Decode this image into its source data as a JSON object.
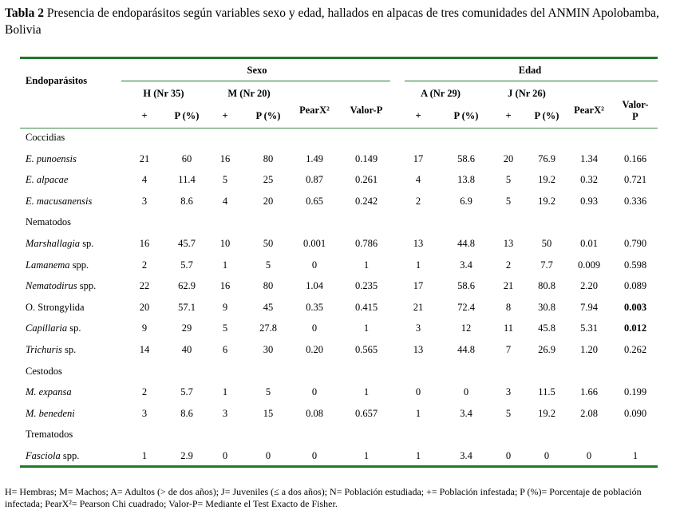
{
  "caption": {
    "label": "Tabla 2",
    "text": " Presencia de endoparásitos según variables sexo y edad, hallados en alpacas de tres comunidades del ANMIN Apolobamba, Bolivia"
  },
  "headers": {
    "endoparasitos": "Endoparásitos",
    "sexo": "Sexo",
    "edad": "Edad",
    "h": "H (Nr 35)",
    "m": "M (Nr 20)",
    "a": "A (Nr 29)",
    "j": "J (Nr 26)",
    "pearx": "PearX²",
    "valor_p": "Valor-P",
    "valor_p_split_1": "Valor-",
    "valor_p_split_2": "P",
    "plus": "+",
    "p_pct": "P (%)"
  },
  "rows": [
    {
      "kind": "group",
      "name": "Coccidias"
    },
    {
      "kind": "data",
      "genus": "E. punoensis",
      "suffix": "",
      "h_plus": "21",
      "h_p": "60",
      "m_plus": "16",
      "m_p": "80",
      "sx_pearx": "1.49",
      "sx_valor": "0.149",
      "a_plus": "17",
      "a_p": "58.6",
      "j_plus": "20",
      "j_p": "76.9",
      "ed_pearx": "1.34",
      "ed_valor": "0.166",
      "bold_valor": false
    },
    {
      "kind": "data",
      "genus": "E. alpacae",
      "suffix": "",
      "h_plus": "4",
      "h_p": "11.4",
      "m_plus": "5",
      "m_p": "25",
      "sx_pearx": "0.87",
      "sx_valor": "0.261",
      "a_plus": "4",
      "a_p": "13.8",
      "j_plus": "5",
      "j_p": "19.2",
      "ed_pearx": "0.32",
      "ed_valor": "0.721",
      "bold_valor": false
    },
    {
      "kind": "data",
      "genus": "E. macusanensis",
      "suffix": "",
      "h_plus": "3",
      "h_p": "8.6",
      "m_plus": "4",
      "m_p": "20",
      "sx_pearx": "0.65",
      "sx_valor": "0.242",
      "a_plus": "2",
      "a_p": "6.9",
      "j_plus": "5",
      "j_p": "19.2",
      "ed_pearx": "0.93",
      "ed_valor": "0.336",
      "bold_valor": false
    },
    {
      "kind": "group",
      "name": "Nematodos"
    },
    {
      "kind": "data",
      "genus": "Marshallagia",
      "suffix": " sp.",
      "h_plus": "16",
      "h_p": "45.7",
      "m_plus": "10",
      "m_p": "50",
      "sx_pearx": "0.001",
      "sx_valor": "0.786",
      "a_plus": "13",
      "a_p": "44.8",
      "j_plus": "13",
      "j_p": "50",
      "ed_pearx": "0.01",
      "ed_valor": "0.790",
      "bold_valor": false
    },
    {
      "kind": "data",
      "genus": "Lamanema",
      "suffix": " spp.",
      "h_plus": "2",
      "h_p": "5.7",
      "m_plus": "1",
      "m_p": "5",
      "sx_pearx": "0",
      "sx_valor": "1",
      "a_plus": "1",
      "a_p": "3.4",
      "j_plus": "2",
      "j_p": "7.7",
      "ed_pearx": "0.009",
      "ed_valor": "0.598",
      "bold_valor": false
    },
    {
      "kind": "data",
      "genus": "Nematodirus",
      "suffix": " spp.",
      "h_plus": "22",
      "h_p": "62.9",
      "m_plus": "16",
      "m_p": "80",
      "sx_pearx": "1.04",
      "sx_valor": "0.235",
      "a_plus": "17",
      "a_p": "58.6",
      "j_plus": "21",
      "j_p": "80.8",
      "ed_pearx": "2.20",
      "ed_valor": "0.089",
      "bold_valor": false
    },
    {
      "kind": "data",
      "genus": "",
      "suffix": "O. Strongylida",
      "h_plus": "20",
      "h_p": "57.1",
      "m_plus": "9",
      "m_p": "45",
      "sx_pearx": "0.35",
      "sx_valor": "0.415",
      "a_plus": "21",
      "a_p": "72.4",
      "j_plus": "8",
      "j_p": "30.8",
      "ed_pearx": "7.94",
      "ed_valor": "0.003",
      "bold_valor": true
    },
    {
      "kind": "data",
      "genus": "Capillaria",
      "suffix": " sp.",
      "h_plus": "9",
      "h_p": "29",
      "m_plus": "5",
      "m_p": "27.8",
      "sx_pearx": "0",
      "sx_valor": "1",
      "a_plus": "3",
      "a_p": "12",
      "j_plus": "11",
      "j_p": "45.8",
      "ed_pearx": "5.31",
      "ed_valor": "0.012",
      "bold_valor": true
    },
    {
      "kind": "data",
      "genus": "Trichuris",
      "suffix": " sp.",
      "h_plus": "14",
      "h_p": "40",
      "m_plus": "6",
      "m_p": "30",
      "sx_pearx": "0.20",
      "sx_valor": "0.565",
      "a_plus": "13",
      "a_p": "44.8",
      "j_plus": "7",
      "j_p": "26.9",
      "ed_pearx": "1.20",
      "ed_valor": "0.262",
      "bold_valor": false
    },
    {
      "kind": "group",
      "name": "Cestodos"
    },
    {
      "kind": "data",
      "genus": "M. expansa",
      "suffix": "",
      "h_plus": "2",
      "h_p": "5.7",
      "m_plus": "1",
      "m_p": "5",
      "sx_pearx": "0",
      "sx_valor": "1",
      "a_plus": "0",
      "a_p": "0",
      "j_plus": "3",
      "j_p": "11.5",
      "ed_pearx": "1.66",
      "ed_valor": "0.199",
      "bold_valor": false
    },
    {
      "kind": "data",
      "genus": "M. benedeni",
      "suffix": "",
      "h_plus": "3",
      "h_p": "8.6",
      "m_plus": "3",
      "m_p": "15",
      "sx_pearx": "0.08",
      "sx_valor": "0.657",
      "a_plus": "1",
      "a_p": "3.4",
      "j_plus": "5",
      "j_p": "19.2",
      "ed_pearx": "2.08",
      "ed_valor": "0.090",
      "bold_valor": false
    },
    {
      "kind": "group",
      "name": "Trematodos"
    },
    {
      "kind": "data",
      "genus": "Fasciola",
      "suffix": " spp.",
      "h_plus": "1",
      "h_p": "2.9",
      "m_plus": "0",
      "m_p": "0",
      "sx_pearx": "0",
      "sx_valor": "1",
      "a_plus": "1",
      "a_p": "3.4",
      "j_plus": "0",
      "j_p": "0",
      "ed_pearx": "0",
      "ed_valor": "1",
      "bold_valor": false
    }
  ],
  "footnote": "H= Hembras; M= Machos; A= Adultos (> de dos años); J= Juveniles (≤ a dos años); N= Población estudiada; += Población infestada; P (%)= Porcentaje de población infectada; PearX²= Pearson Chi cuadrado; Valor-P= Mediante el Test Exacto de Fisher."
}
